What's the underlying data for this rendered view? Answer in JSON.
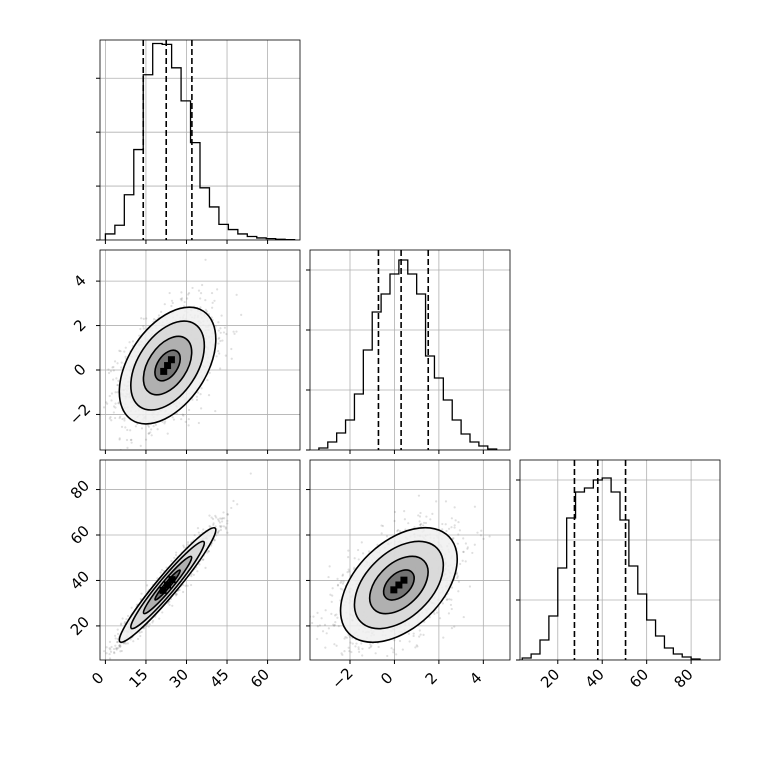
{
  "chart_data": {
    "type": "corner",
    "parameters": [
      "",
      "",
      ""
    ],
    "quantiles_note": "",
    "colors": {
      "line": "#000000",
      "grid": "#b0b0b0",
      "scatter": "#4d4d4d",
      "background": "#ffffff"
    },
    "grid": true,
    "panels": [
      {
        "id": "hist-p0",
        "type": "histogram",
        "row": 0,
        "col": 0,
        "xlim": [
          -2,
          72
        ],
        "ylim": [
          0,
          1150
        ],
        "xticks": [
          0,
          15,
          30,
          45,
          60
        ],
        "yticks": [
          0,
          310,
          620,
          930
        ],
        "bin_edges": [
          0,
          3.5,
          7,
          10.5,
          14,
          17.5,
          21,
          24.5,
          28,
          31.5,
          35,
          38.5,
          42,
          45.5,
          49,
          52.5,
          56,
          59.5,
          63,
          66.5,
          70
        ],
        "counts": [
          35,
          85,
          260,
          520,
          950,
          1130,
          1125,
          990,
          800,
          560,
          300,
          190,
          90,
          60,
          35,
          20,
          12,
          8,
          4,
          2
        ],
        "quantiles": [
          14,
          22.5,
          32
        ]
      },
      {
        "id": "hist-p1",
        "type": "histogram",
        "row": 1,
        "col": 1,
        "xlim": [
          -3.8,
          5.2
        ],
        "ylim": [
          0,
          1000
        ],
        "xticks": [
          -2,
          0,
          2,
          4
        ],
        "xticklabels": [
          "−2",
          "0",
          "2",
          "4"
        ],
        "yticks": [
          0,
          300,
          600,
          900
        ],
        "bin_edges": [
          -3.4,
          -3.0,
          -2.6,
          -2.2,
          -1.8,
          -1.4,
          -1.0,
          -0.6,
          -0.2,
          0.2,
          0.6,
          1.0,
          1.4,
          1.8,
          2.2,
          2.6,
          3.0,
          3.4,
          3.8,
          4.2,
          4.6
        ],
        "counts": [
          10,
          40,
          85,
          150,
          280,
          500,
          690,
          780,
          880,
          950,
          880,
          780,
          470,
          360,
          250,
          150,
          80,
          40,
          20,
          5
        ],
        "quantiles": [
          -0.72,
          0.3,
          1.52
        ]
      },
      {
        "id": "hist-p2",
        "type": "histogram",
        "row": 2,
        "col": 2,
        "xlim": [
          3,
          93
        ],
        "ylim": [
          0,
          1000
        ],
        "xticks": [
          20,
          40,
          60,
          80
        ],
        "yticks": [
          0,
          300,
          600,
          900
        ],
        "bin_edges": [
          4,
          8,
          12,
          16,
          20,
          24,
          28,
          32,
          36,
          40,
          44,
          48,
          52,
          56,
          60,
          64,
          68,
          72,
          76,
          80,
          84
        ],
        "counts": [
          10,
          30,
          100,
          220,
          460,
          710,
          840,
          860,
          900,
          910,
          840,
          700,
          470,
          330,
          200,
          120,
          60,
          30,
          15,
          5
        ],
        "quantiles": [
          27.5,
          38,
          50.5
        ]
      },
      {
        "id": "scatter-p1-vs-p0",
        "type": "scatter_contour",
        "row": 1,
        "col": 0,
        "xlim": [
          -2,
          72
        ],
        "ylim": [
          -3.6,
          5.4
        ],
        "xticks": [
          0,
          15,
          30,
          45,
          60
        ],
        "yticks": [
          -2,
          0,
          2,
          4
        ],
        "yticklabels": [
          "−2",
          "0",
          "2",
          "4"
        ],
        "mean": [
          23,
          0.2
        ],
        "sd": [
          8.5,
          1.25
        ],
        "corr": 0.45,
        "n_points": 1800
      },
      {
        "id": "scatter-p2-vs-p0",
        "type": "scatter_contour",
        "row": 2,
        "col": 0,
        "xlim": [
          -2,
          72
        ],
        "ylim": [
          5,
          93
        ],
        "xticks": [
          0,
          15,
          30,
          45,
          60
        ],
        "yticks": [
          20,
          40,
          60,
          80
        ],
        "mean": [
          23,
          38
        ],
        "sd": [
          8.5,
          12
        ],
        "corr": 0.96,
        "n_points": 1800
      },
      {
        "id": "scatter-p2-vs-p1",
        "type": "scatter_contour",
        "row": 2,
        "col": 1,
        "xlim": [
          -3.8,
          5.2
        ],
        "ylim": [
          5,
          93
        ],
        "xticks": [
          -2,
          0,
          2,
          4
        ],
        "xticklabels": [
          "−2",
          "0",
          "2",
          "4"
        ],
        "yticks": [
          20,
          40,
          60,
          80
        ],
        "mean": [
          0.2,
          38
        ],
        "sd": [
          1.25,
          12
        ],
        "corr": 0.45,
        "n_points": 1800
      }
    ],
    "tick_labels_bottom_row": {
      "col0": [
        "0",
        "15",
        "30",
        "45",
        "60"
      ],
      "col1": [
        "−2",
        "0",
        "2",
        "4"
      ],
      "col2": [
        "20",
        "40",
        "60",
        "80"
      ]
    },
    "tick_labels_left_col": {
      "row1": [
        "−2",
        "0",
        "2",
        "4"
      ],
      "row2": [
        "20",
        "40",
        "60",
        "80"
      ]
    }
  }
}
